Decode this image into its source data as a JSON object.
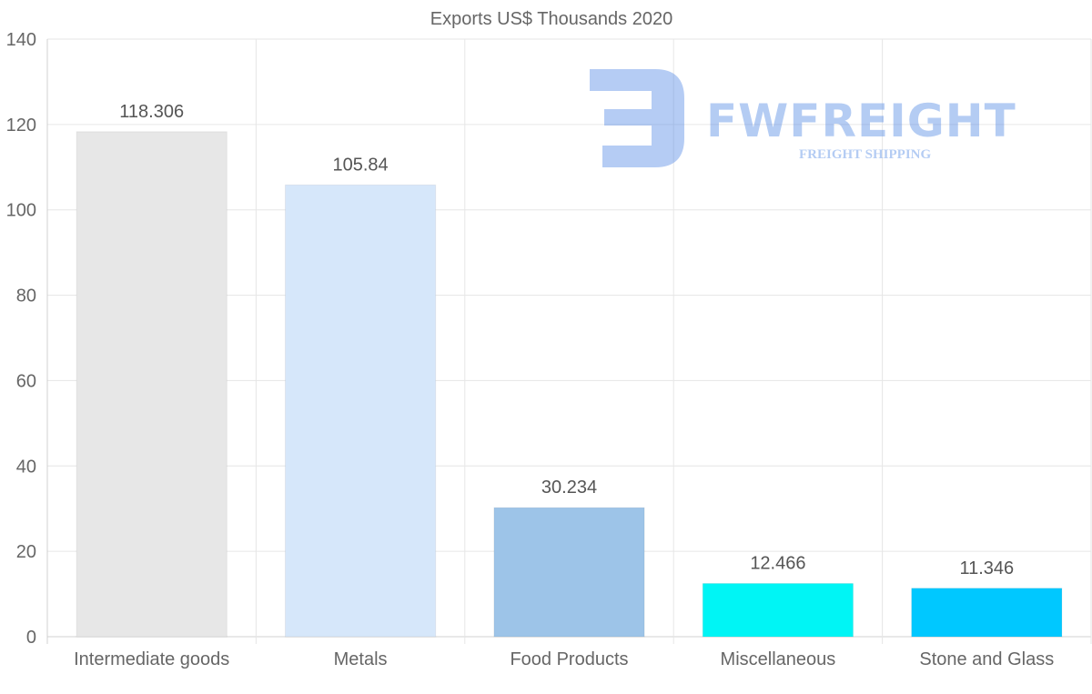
{
  "chart_data": {
    "type": "bar",
    "title": "Exports US$ Thousands 2020",
    "xlabel": "",
    "ylabel": "",
    "categories": [
      "Intermediate goods",
      "Metals",
      "Food Products",
      "Miscellaneous",
      "Stone and Glass"
    ],
    "values": [
      118.306,
      105.84,
      30.234,
      12.466,
      11.346
    ],
    "value_labels": [
      "118.306",
      "105.84",
      "30.234",
      "12.466",
      "11.346"
    ],
    "colors": [
      "#e7e7e7",
      "#d6e7fa",
      "#9dc4e8",
      "#00f5f5",
      "#00c8ff"
    ],
    "ylim": [
      0,
      140
    ],
    "yticks": [
      0,
      20,
      40,
      60,
      80,
      100,
      120,
      140
    ],
    "grid": true,
    "legend": "none"
  },
  "watermark": {
    "brand": "FWFREIGHT",
    "tagline": "FREIGHT SHIPPING",
    "color": "#5b8fe6"
  }
}
